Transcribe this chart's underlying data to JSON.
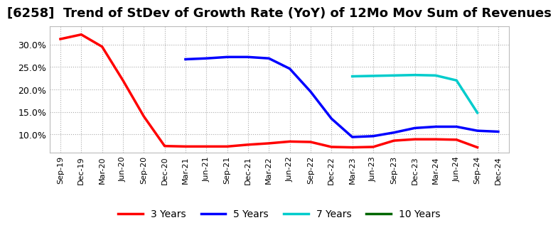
{
  "title": "[6258]  Trend of StDev of Growth Rate (YoY) of 12Mo Mov Sum of Revenues",
  "title_fontsize": 13,
  "background_color": "#ffffff",
  "plot_bg_color": "#ffffff",
  "grid_color": "#aaaaaa",
  "ylim": [
    0.06,
    0.34
  ],
  "yticks": [
    0.1,
    0.15,
    0.2,
    0.25,
    0.3
  ],
  "ytick_labels": [
    "10.0%",
    "15.0%",
    "20.0%",
    "25.0%",
    "30.0%"
  ],
  "series": {
    "3 Years": {
      "color": "#ff0000",
      "x": [
        "Sep-19",
        "Dec-19",
        "Mar-20",
        "Jun-20",
        "Sep-20",
        "Dec-20",
        "Mar-21",
        "Jun-21",
        "Sep-21",
        "Dec-21",
        "Mar-22",
        "Jun-22",
        "Sep-22",
        "Dec-22",
        "Mar-23",
        "Jun-23",
        "Sep-23",
        "Dec-23",
        "Mar-24",
        "Jun-24",
        "Sep-24"
      ],
      "y": [
        0.312,
        0.322,
        0.295,
        0.22,
        0.14,
        0.074,
        0.073,
        0.073,
        0.073,
        0.077,
        0.08,
        0.084,
        0.083,
        0.072,
        0.071,
        0.072,
        0.086,
        0.089,
        0.089,
        0.088,
        0.071
      ]
    },
    "5 Years": {
      "color": "#0000ff",
      "x": [
        "Mar-21",
        "Jun-21",
        "Sep-21",
        "Dec-21",
        "Mar-22",
        "Jun-22",
        "Sep-22",
        "Dec-22",
        "Mar-23",
        "Jun-23",
        "Sep-23",
        "Dec-23",
        "Mar-24",
        "Jun-24",
        "Sep-24",
        "Dec-24"
      ],
      "y": [
        0.267,
        0.269,
        0.272,
        0.272,
        0.269,
        0.246,
        0.195,
        0.135,
        0.094,
        0.096,
        0.104,
        0.114,
        0.117,
        0.117,
        0.108,
        0.106
      ]
    },
    "7 Years": {
      "color": "#00cccc",
      "x": [
        "Mar-23",
        "Jun-23",
        "Sep-23",
        "Dec-23",
        "Mar-24",
        "Jun-24",
        "Sep-24"
      ],
      "y": [
        0.229,
        0.23,
        0.231,
        0.232,
        0.231,
        0.22,
        0.148
      ]
    },
    "10 Years": {
      "color": "#006600",
      "x": [],
      "y": []
    }
  },
  "legend_labels": [
    "3 Years",
    "5 Years",
    "7 Years",
    "10 Years"
  ],
  "xtick_labels": [
    "Sep-19",
    "Dec-19",
    "Mar-20",
    "Jun-20",
    "Sep-20",
    "Dec-20",
    "Mar-21",
    "Jun-21",
    "Sep-21",
    "Dec-21",
    "Mar-22",
    "Jun-22",
    "Sep-22",
    "Dec-22",
    "Mar-23",
    "Jun-23",
    "Sep-23",
    "Dec-23",
    "Mar-24",
    "Jun-24",
    "Sep-24",
    "Dec-24"
  ]
}
